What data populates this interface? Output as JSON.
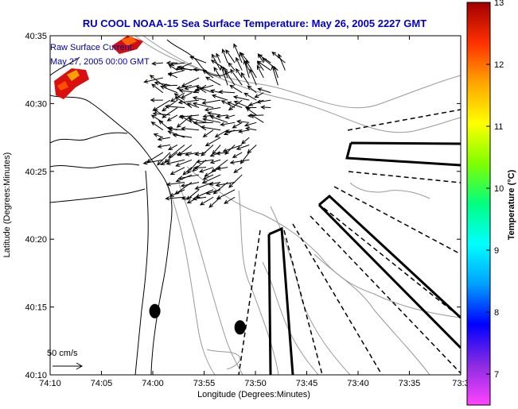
{
  "chart_data": {
    "type": "scatter",
    "title": "RU COOL  NOAA-15  Sea Surface Temperature:  May 26, 2005 2227 GMT",
    "annotation_lines": [
      "Raw Surface Current:",
      "May 27, 2005 00:00 GMT"
    ],
    "xlabel": "Longitude (Degrees:Minutes)",
    "ylabel": "Latitude (Degrees:Minutes)",
    "xlim_minutes_west": [
      10,
      30
    ],
    "ylim_minutes_north": [
      10,
      35
    ],
    "xticks": [
      {
        "v": 10,
        "label": "74:10"
      },
      {
        "v": 5,
        "label": "74:05"
      },
      {
        "v": 0,
        "label": "74:00"
      },
      {
        "v": -5,
        "label": "73:55"
      },
      {
        "v": -10,
        "label": "73:50"
      },
      {
        "v": -15,
        "label": "73:45"
      },
      {
        "v": -20,
        "label": "73:40"
      },
      {
        "v": -25,
        "label": "73:35"
      },
      {
        "v": -30,
        "label": "73:3"
      }
    ],
    "yticks": [
      {
        "v": 35,
        "label": "40:35"
      },
      {
        "v": 30,
        "label": "40:30"
      },
      {
        "v": 25,
        "label": "40:25"
      },
      {
        "v": 20,
        "label": "40:20"
      },
      {
        "v": 15,
        "label": "40:15"
      },
      {
        "v": 10,
        "label": "40:10"
      }
    ],
    "scale_label": "50 cm/s",
    "colorbar": {
      "label": "Temperature (°C)",
      "min": 6.5,
      "max": 13,
      "ticks": [
        {
          "v": 13,
          "label": "13"
        },
        {
          "v": 12,
          "label": "12"
        },
        {
          "v": 11,
          "label": "11"
        },
        {
          "v": 10,
          "label": "10"
        },
        {
          "v": 9,
          "label": "9"
        },
        {
          "v": 8,
          "label": "8"
        },
        {
          "v": 7,
          "label": "7"
        }
      ],
      "stops": [
        "#ff44ff",
        "#8a2be2",
        "#0000ff",
        "#00a0ff",
        "#00ffff",
        "#00ff80",
        "#80ff00",
        "#ffff00",
        "#ffa500",
        "#ff3000",
        "#a00000"
      ]
    },
    "current_field": {
      "description": "surface current vectors, approx 40:22-40:33 N, 73:51-74:01 W",
      "lon_range": [
        -1,
        -13.5
      ],
      "lat_range": [
        23,
        33
      ],
      "dominant_direction": "westward"
    },
    "moorings": [
      {
        "lon": -0.2,
        "lat": 14.7
      },
      {
        "lon": -8.5,
        "lat": 13.5
      }
    ]
  }
}
